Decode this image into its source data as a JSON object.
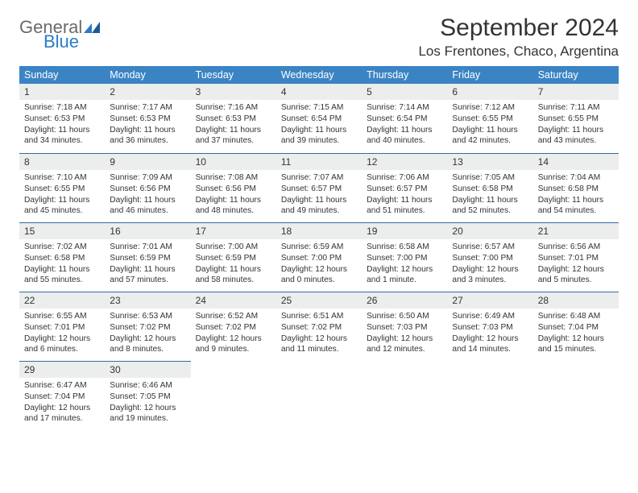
{
  "brand": {
    "name_top": "General",
    "name_bottom": "Blue"
  },
  "title": "September 2024",
  "location": "Los Frentones, Chaco, Argentina",
  "colors": {
    "header_bg": "#3b84c4",
    "header_text": "#ffffff",
    "daynum_bg": "#eceded",
    "row_border": "#2f6da8",
    "body_text": "#333333",
    "logo_gray": "#6a6a6a",
    "logo_blue": "#2a7cc7"
  },
  "weekdays": [
    "Sunday",
    "Monday",
    "Tuesday",
    "Wednesday",
    "Thursday",
    "Friday",
    "Saturday"
  ],
  "days": [
    {
      "n": "1",
      "sunrise": "7:18 AM",
      "sunset": "6:53 PM",
      "day_h": "11",
      "day_m": "34"
    },
    {
      "n": "2",
      "sunrise": "7:17 AM",
      "sunset": "6:53 PM",
      "day_h": "11",
      "day_m": "36"
    },
    {
      "n": "3",
      "sunrise": "7:16 AM",
      "sunset": "6:53 PM",
      "day_h": "11",
      "day_m": "37"
    },
    {
      "n": "4",
      "sunrise": "7:15 AM",
      "sunset": "6:54 PM",
      "day_h": "11",
      "day_m": "39"
    },
    {
      "n": "5",
      "sunrise": "7:14 AM",
      "sunset": "6:54 PM",
      "day_h": "11",
      "day_m": "40"
    },
    {
      "n": "6",
      "sunrise": "7:12 AM",
      "sunset": "6:55 PM",
      "day_h": "11",
      "day_m": "42"
    },
    {
      "n": "7",
      "sunrise": "7:11 AM",
      "sunset": "6:55 PM",
      "day_h": "11",
      "day_m": "43"
    },
    {
      "n": "8",
      "sunrise": "7:10 AM",
      "sunset": "6:55 PM",
      "day_h": "11",
      "day_m": "45"
    },
    {
      "n": "9",
      "sunrise": "7:09 AM",
      "sunset": "6:56 PM",
      "day_h": "11",
      "day_m": "46"
    },
    {
      "n": "10",
      "sunrise": "7:08 AM",
      "sunset": "6:56 PM",
      "day_h": "11",
      "day_m": "48"
    },
    {
      "n": "11",
      "sunrise": "7:07 AM",
      "sunset": "6:57 PM",
      "day_h": "11",
      "day_m": "49"
    },
    {
      "n": "12",
      "sunrise": "7:06 AM",
      "sunset": "6:57 PM",
      "day_h": "11",
      "day_m": "51"
    },
    {
      "n": "13",
      "sunrise": "7:05 AM",
      "sunset": "6:58 PM",
      "day_h": "11",
      "day_m": "52"
    },
    {
      "n": "14",
      "sunrise": "7:04 AM",
      "sunset": "6:58 PM",
      "day_h": "11",
      "day_m": "54"
    },
    {
      "n": "15",
      "sunrise": "7:02 AM",
      "sunset": "6:58 PM",
      "day_h": "11",
      "day_m": "55"
    },
    {
      "n": "16",
      "sunrise": "7:01 AM",
      "sunset": "6:59 PM",
      "day_h": "11",
      "day_m": "57"
    },
    {
      "n": "17",
      "sunrise": "7:00 AM",
      "sunset": "6:59 PM",
      "day_h": "11",
      "day_m": "58"
    },
    {
      "n": "18",
      "sunrise": "6:59 AM",
      "sunset": "7:00 PM",
      "day_h": "12",
      "day_m": "0"
    },
    {
      "n": "19",
      "sunrise": "6:58 AM",
      "sunset": "7:00 PM",
      "day_h": "12",
      "day_m": "1"
    },
    {
      "n": "20",
      "sunrise": "6:57 AM",
      "sunset": "7:00 PM",
      "day_h": "12",
      "day_m": "3"
    },
    {
      "n": "21",
      "sunrise": "6:56 AM",
      "sunset": "7:01 PM",
      "day_h": "12",
      "day_m": "5"
    },
    {
      "n": "22",
      "sunrise": "6:55 AM",
      "sunset": "7:01 PM",
      "day_h": "12",
      "day_m": "6"
    },
    {
      "n": "23",
      "sunrise": "6:53 AM",
      "sunset": "7:02 PM",
      "day_h": "12",
      "day_m": "8"
    },
    {
      "n": "24",
      "sunrise": "6:52 AM",
      "sunset": "7:02 PM",
      "day_h": "12",
      "day_m": "9"
    },
    {
      "n": "25",
      "sunrise": "6:51 AM",
      "sunset": "7:02 PM",
      "day_h": "12",
      "day_m": "11"
    },
    {
      "n": "26",
      "sunrise": "6:50 AM",
      "sunset": "7:03 PM",
      "day_h": "12",
      "day_m": "12"
    },
    {
      "n": "27",
      "sunrise": "6:49 AM",
      "sunset": "7:03 PM",
      "day_h": "12",
      "day_m": "14"
    },
    {
      "n": "28",
      "sunrise": "6:48 AM",
      "sunset": "7:04 PM",
      "day_h": "12",
      "day_m": "15"
    },
    {
      "n": "29",
      "sunrise": "6:47 AM",
      "sunset": "7:04 PM",
      "day_h": "12",
      "day_m": "17"
    },
    {
      "n": "30",
      "sunrise": "6:46 AM",
      "sunset": "7:05 PM",
      "day_h": "12",
      "day_m": "19"
    }
  ],
  "layout": {
    "start_weekday": 0,
    "rows": 5,
    "cols": 7
  }
}
